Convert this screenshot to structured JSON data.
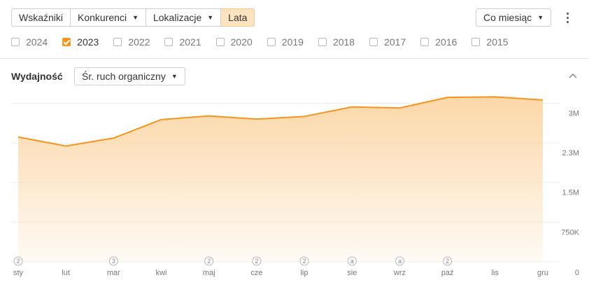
{
  "toolbar": {
    "tabs": [
      {
        "label": "Wskaźniki",
        "active": false,
        "dropdown": false
      },
      {
        "label": "Konkurenci",
        "active": false,
        "dropdown": true
      },
      {
        "label": "Lokalizacje",
        "active": false,
        "dropdown": true
      },
      {
        "label": "Lata",
        "active": true,
        "dropdown": false
      }
    ],
    "frequency": "Co miesiąc",
    "more_icon": "kebab-menu-icon"
  },
  "years": [
    {
      "label": "2024",
      "checked": false
    },
    {
      "label": "2023",
      "checked": true
    },
    {
      "label": "2022",
      "checked": false
    },
    {
      "label": "2021",
      "checked": false
    },
    {
      "label": "2020",
      "checked": false
    },
    {
      "label": "2019",
      "checked": false
    },
    {
      "label": "2018",
      "checked": false
    },
    {
      "label": "2017",
      "checked": false
    },
    {
      "label": "2016",
      "checked": false
    },
    {
      "label": "2015",
      "checked": false
    }
  ],
  "performance": {
    "title": "Wydajność",
    "metric": "Śr. ruch organiczny",
    "collapse_icon": "chevron-up-icon"
  },
  "colors": {
    "accent": "#f7941d",
    "area_fill_top": "#fcd7a8",
    "active_tab": "#fde3bf"
  },
  "chart_data": {
    "type": "area",
    "categories": [
      "sty",
      "lut",
      "mar",
      "kwi",
      "maj",
      "cze",
      "lip",
      "sie",
      "wrz",
      "paź",
      "lis",
      "gru"
    ],
    "series": [
      {
        "values": [
          2360000,
          2190000,
          2340000,
          2690000,
          2760000,
          2700000,
          2750000,
          2930000,
          2910000,
          3110000,
          3120000,
          3060000
        ]
      }
    ],
    "y_ticks": [
      {
        "value": 3000000,
        "label": "3M"
      },
      {
        "value": 2250000,
        "label": "2.3M"
      },
      {
        "value": 1500000,
        "label": "1.5M"
      },
      {
        "value": 750000,
        "label": "750K"
      },
      {
        "value": 0,
        "label": "0"
      }
    ],
    "ylim": [
      0,
      3000000
    ],
    "grid": true,
    "annotations": [
      {
        "category": "sty",
        "label": "2"
      },
      {
        "category": "mar",
        "label": "3"
      },
      {
        "category": "maj",
        "label": "2"
      },
      {
        "category": "cze",
        "label": "2"
      },
      {
        "category": "lip",
        "label": "2"
      },
      {
        "category": "sie",
        "label": "a"
      },
      {
        "category": "wrz",
        "label": "a"
      },
      {
        "category": "paź",
        "label": "2"
      }
    ]
  }
}
